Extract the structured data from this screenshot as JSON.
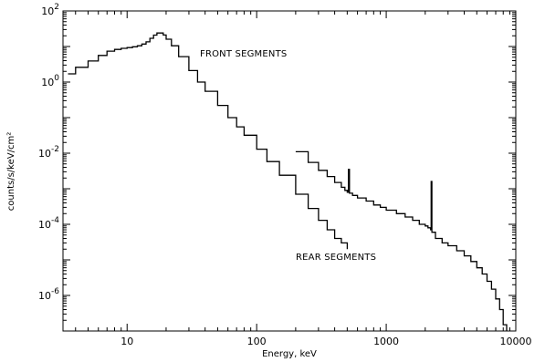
{
  "chart_data": {
    "type": "line",
    "title": "",
    "xlabel": "Energy, keV",
    "ylabel": "counts/s/keV/cm²",
    "xscale": "log",
    "yscale": "log",
    "xlim": [
      3.2,
      10000
    ],
    "ylim": [
      1e-07,
      100
    ],
    "grid": false,
    "legend": "none",
    "x_tick_labels": [
      "10",
      "100",
      "1000",
      "10000"
    ],
    "y_tick_labels": [
      {
        "base": "10",
        "exp": "2"
      },
      {
        "base": "10",
        "exp": "0"
      },
      {
        "base": "10",
        "exp": "-2"
      },
      {
        "base": "10",
        "exp": "-4"
      },
      {
        "base": "10",
        "exp": "-6"
      }
    ],
    "annotations": [
      {
        "text": "FRONT SEGMENTS",
        "near": "upper-middle"
      },
      {
        "text": "REAR SEGMENTS",
        "near": "lower-right"
      }
    ],
    "series": [
      {
        "x": [
          3.5,
          4,
          5,
          6,
          7,
          8,
          9,
          10,
          11,
          12,
          13,
          14,
          15,
          16,
          17,
          18,
          19,
          20,
          22,
          25,
          30,
          35,
          40,
          50,
          60,
          70,
          80,
          100,
          120,
          150,
          200,
          250,
          300,
          350,
          400,
          450,
          500
        ],
        "y": [
          1.7,
          2.6,
          3.9,
          5.6,
          7.4,
          8.3,
          8.9,
          9.3,
          9.8,
          10.5,
          11.7,
          13.5,
          17,
          20.9,
          24,
          24,
          21,
          16,
          10.5,
          5.2,
          2.1,
          1.0,
          0.55,
          0.22,
          0.1,
          0.055,
          0.032,
          0.013,
          0.0058,
          0.0024,
          0.0007,
          0.00028,
          0.00013,
          7e-05,
          4e-05,
          3e-05,
          2e-05
        ]
      },
      {
        "x": [
          200,
          250,
          300,
          350,
          400,
          450,
          480,
          500,
          511,
          520,
          550,
          600,
          700,
          800,
          900,
          1000,
          1200,
          1400,
          1600,
          1800,
          2000,
          2100,
          2200,
          2223,
          2250,
          2400,
          2700,
          3000,
          3500,
          4000,
          4500,
          5000,
          5500,
          6000,
          6500,
          7000,
          7500,
          8000,
          8500
        ],
        "y": [
          0.011,
          0.0055,
          0.0033,
          0.0022,
          0.0015,
          0.0011,
          0.0009,
          0.0008,
          0.0035,
          0.00075,
          0.00065,
          0.00055,
          0.00045,
          0.00035,
          0.0003,
          0.00025,
          0.0002,
          0.00016,
          0.00013,
          0.0001,
          9e-05,
          8e-05,
          7e-05,
          0.0016,
          6e-05,
          4e-05,
          3e-05,
          2.5e-05,
          1.8e-05,
          1.3e-05,
          9e-06,
          6e-06,
          4e-06,
          2.5e-06,
          1.5e-06,
          8e-07,
          4e-07,
          1.5e-07,
          1e-07
        ]
      }
    ]
  }
}
